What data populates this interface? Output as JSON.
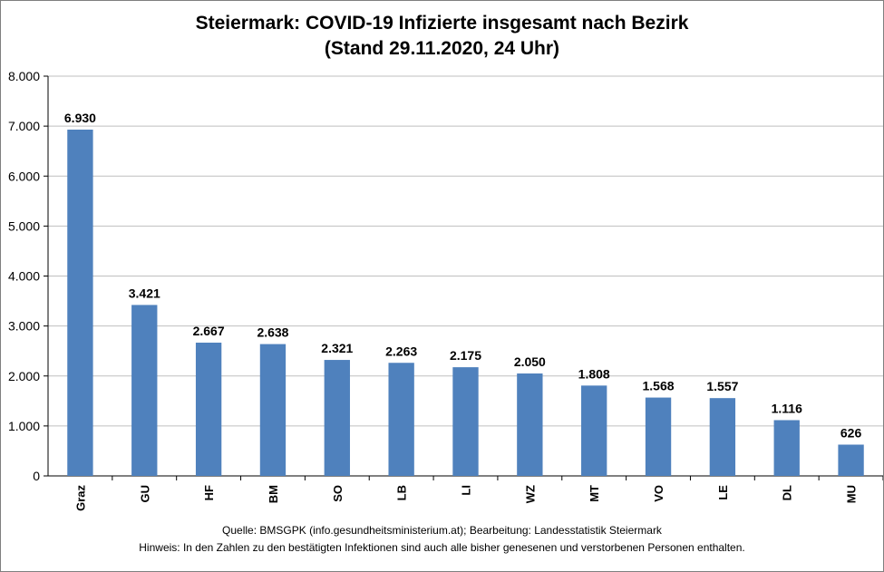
{
  "chart_data": {
    "type": "bar",
    "title_line1": "Steiermark: COVID-19 Infizierte insgesamt nach Bezirk",
    "title_line2": "(Stand 29.11.2020, 24 Uhr)",
    "categories": [
      "Graz",
      "GU",
      "HF",
      "BM",
      "SO",
      "LB",
      "LI",
      "WZ",
      "MT",
      "VO",
      "LE",
      "DL",
      "MU"
    ],
    "values": [
      6930,
      3421,
      2667,
      2638,
      2321,
      2263,
      2175,
      2050,
      1808,
      1568,
      1557,
      1116,
      626
    ],
    "value_labels": [
      "6.930",
      "3.421",
      "2.667",
      "2.638",
      "2.321",
      "2.263",
      "2.175",
      "2.050",
      "1.808",
      "1.568",
      "1.557",
      "1.116",
      "626"
    ],
    "yticks": [
      0,
      1000,
      2000,
      3000,
      4000,
      5000,
      6000,
      7000,
      8000
    ],
    "ytick_labels": [
      "0",
      "1.000",
      "2.000",
      "3.000",
      "4.000",
      "5.000",
      "6.000",
      "7.000",
      "8.000"
    ],
    "ylim": [
      0,
      8000
    ],
    "grid": true,
    "bar_color": "#4f81bd",
    "grid_color": "#bfbfbf",
    "legend": "none"
  },
  "footer": {
    "source": "Quelle: BMSGPK (info.gesundheitsministerium.at); Bearbeitung: Landesstatistik Steiermark",
    "note": "Hinweis: In den Zahlen zu den bestätigten Infektionen sind auch alle bisher genesenen und verstorbenen Personen enthalten."
  }
}
